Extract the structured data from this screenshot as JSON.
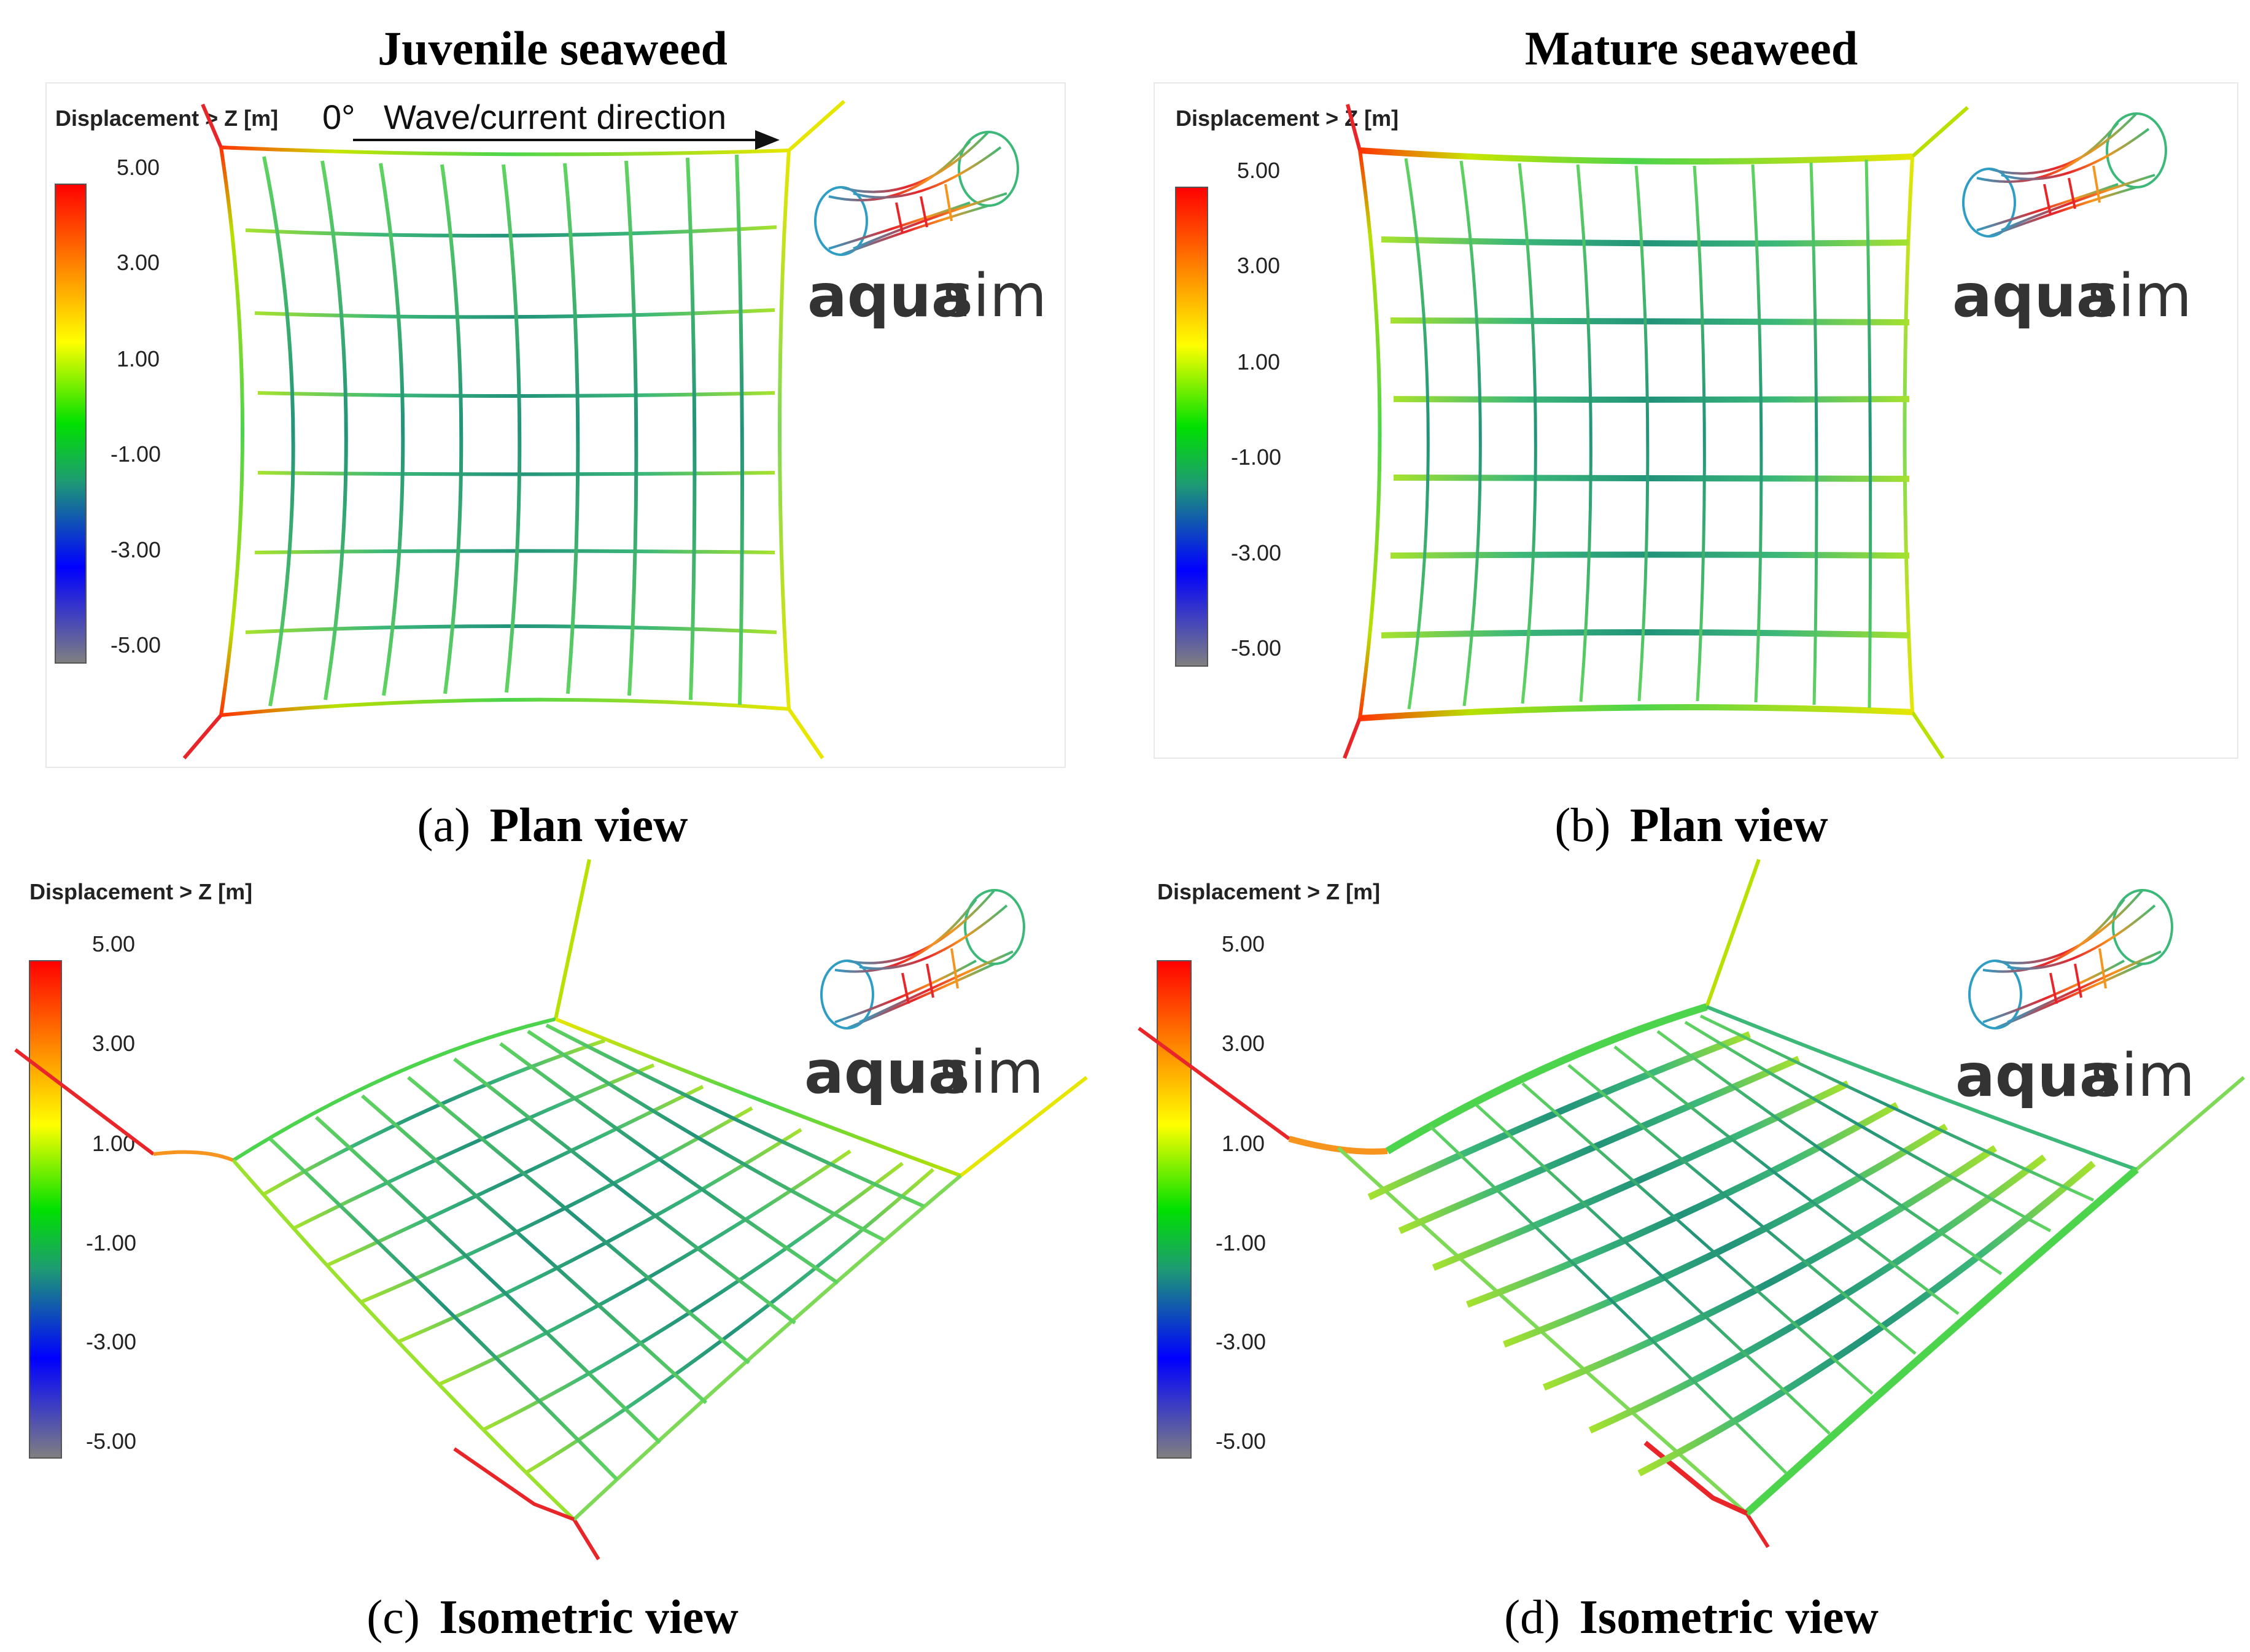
{
  "figure": {
    "title_left": "Juvenile seaweed",
    "title_right": "Mature seaweed",
    "panels": [
      {
        "id": "a",
        "caption_label": "(a)",
        "caption_text": "Plan view"
      },
      {
        "id": "b",
        "caption_label": "(b)",
        "caption_text": "Plan view"
      },
      {
        "id": "c",
        "caption_label": "(c)",
        "caption_text": "Isometric view"
      },
      {
        "id": "d",
        "caption_label": "(d)",
        "caption_text": "Isometric view"
      }
    ]
  },
  "legend": {
    "title": "Displacement > Z [m]",
    "ticks": [
      "5.00",
      "3.00",
      "1.00",
      "-1.00",
      "-3.00",
      "-5.00"
    ],
    "colors": [
      "#ff0000",
      "#ff8c00",
      "#ffff00",
      "#00ff00",
      "#1e9b73",
      "#0000ff",
      "#808080"
    ]
  },
  "logo": {
    "text_bold": "aqua",
    "text_light": "sim"
  },
  "direction": {
    "angle": "0°",
    "label": "Wave/current direction"
  },
  "colors": {
    "edge_red": "#e8262a",
    "edge_orange": "#f7941d",
    "edge_yellow": "#e6e600",
    "grid_green": "#4cd44c",
    "grid_teal": "#22937a",
    "logo_orange": "#f7941d",
    "logo_blue": "#2f9ec4"
  }
}
